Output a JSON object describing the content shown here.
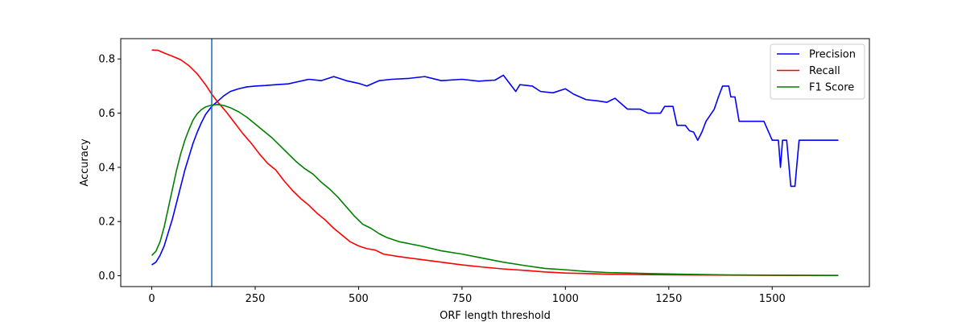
{
  "chart_data": {
    "type": "line",
    "title": "",
    "xlabel": "ORF length threshold",
    "ylabel": "Accuracy",
    "xlim": [
      -75,
      1735
    ],
    "ylim": [
      -0.04,
      0.875
    ],
    "xticks": [
      0,
      250,
      500,
      750,
      1000,
      1250,
      1500
    ],
    "yticks": [
      0.0,
      0.2,
      0.4,
      0.6,
      0.8
    ],
    "xtick_labels": [
      "0",
      "250",
      "500",
      "750",
      "1000",
      "1250",
      "1500"
    ],
    "ytick_labels": [
      "0.0",
      "0.2",
      "0.4",
      "0.6",
      "0.8"
    ],
    "grid": false,
    "legend_position": "top-right",
    "vline": {
      "x": 145,
      "color": "#1f77b4"
    },
    "series": [
      {
        "name": "Precision",
        "color": "#0000ff",
        "points": [
          [
            0,
            0.04
          ],
          [
            10,
            0.05
          ],
          [
            20,
            0.075
          ],
          [
            30,
            0.11
          ],
          [
            40,
            0.16
          ],
          [
            50,
            0.21
          ],
          [
            60,
            0.27
          ],
          [
            70,
            0.33
          ],
          [
            80,
            0.39
          ],
          [
            90,
            0.44
          ],
          [
            100,
            0.49
          ],
          [
            110,
            0.53
          ],
          [
            120,
            0.565
          ],
          [
            130,
            0.595
          ],
          [
            145,
            0.625
          ],
          [
            160,
            0.645
          ],
          [
            175,
            0.665
          ],
          [
            190,
            0.68
          ],
          [
            210,
            0.69
          ],
          [
            230,
            0.697
          ],
          [
            250,
            0.7
          ],
          [
            275,
            0.702
          ],
          [
            300,
            0.705
          ],
          [
            330,
            0.708
          ],
          [
            350,
            0.715
          ],
          [
            380,
            0.725
          ],
          [
            410,
            0.72
          ],
          [
            440,
            0.735
          ],
          [
            470,
            0.72
          ],
          [
            500,
            0.71
          ],
          [
            520,
            0.7
          ],
          [
            550,
            0.72
          ],
          [
            580,
            0.725
          ],
          [
            620,
            0.728
          ],
          [
            660,
            0.735
          ],
          [
            700,
            0.72
          ],
          [
            750,
            0.725
          ],
          [
            790,
            0.718
          ],
          [
            830,
            0.722
          ],
          [
            850,
            0.74
          ],
          [
            860,
            0.72
          ],
          [
            880,
            0.68
          ],
          [
            890,
            0.705
          ],
          [
            920,
            0.7
          ],
          [
            940,
            0.68
          ],
          [
            970,
            0.675
          ],
          [
            1000,
            0.69
          ],
          [
            1020,
            0.67
          ],
          [
            1050,
            0.65
          ],
          [
            1080,
            0.645
          ],
          [
            1100,
            0.64
          ],
          [
            1120,
            0.655
          ],
          [
            1150,
            0.615
          ],
          [
            1180,
            0.615
          ],
          [
            1200,
            0.6
          ],
          [
            1230,
            0.6
          ],
          [
            1240,
            0.625
          ],
          [
            1260,
            0.625
          ],
          [
            1270,
            0.555
          ],
          [
            1290,
            0.555
          ],
          [
            1300,
            0.535
          ],
          [
            1310,
            0.53
          ],
          [
            1320,
            0.5
          ],
          [
            1330,
            0.53
          ],
          [
            1340,
            0.57
          ],
          [
            1360,
            0.615
          ],
          [
            1370,
            0.66
          ],
          [
            1380,
            0.7
          ],
          [
            1395,
            0.7
          ],
          [
            1400,
            0.66
          ],
          [
            1410,
            0.66
          ],
          [
            1420,
            0.57
          ],
          [
            1450,
            0.57
          ],
          [
            1480,
            0.57
          ],
          [
            1500,
            0.5
          ],
          [
            1515,
            0.5
          ],
          [
            1520,
            0.4
          ],
          [
            1525,
            0.5
          ],
          [
            1535,
            0.5
          ],
          [
            1545,
            0.33
          ],
          [
            1555,
            0.33
          ],
          [
            1565,
            0.5
          ],
          [
            1600,
            0.5
          ],
          [
            1660,
            0.5
          ]
        ]
      },
      {
        "name": "Recall",
        "color": "#ff0000",
        "points": [
          [
            0,
            0.833
          ],
          [
            15,
            0.832
          ],
          [
            30,
            0.822
          ],
          [
            50,
            0.81
          ],
          [
            70,
            0.797
          ],
          [
            90,
            0.775
          ],
          [
            110,
            0.745
          ],
          [
            130,
            0.705
          ],
          [
            145,
            0.67
          ],
          [
            160,
            0.64
          ],
          [
            180,
            0.605
          ],
          [
            200,
            0.565
          ],
          [
            220,
            0.525
          ],
          [
            240,
            0.49
          ],
          [
            260,
            0.45
          ],
          [
            280,
            0.415
          ],
          [
            300,
            0.39
          ],
          [
            320,
            0.35
          ],
          [
            340,
            0.315
          ],
          [
            360,
            0.285
          ],
          [
            380,
            0.26
          ],
          [
            400,
            0.23
          ],
          [
            420,
            0.205
          ],
          [
            440,
            0.175
          ],
          [
            460,
            0.15
          ],
          [
            480,
            0.125
          ],
          [
            500,
            0.11
          ],
          [
            520,
            0.1
          ],
          [
            540,
            0.095
          ],
          [
            560,
            0.08
          ],
          [
            600,
            0.07
          ],
          [
            650,
            0.06
          ],
          [
            700,
            0.05
          ],
          [
            750,
            0.04
          ],
          [
            800,
            0.032
          ],
          [
            850,
            0.025
          ],
          [
            900,
            0.02
          ],
          [
            950,
            0.014
          ],
          [
            1000,
            0.01
          ],
          [
            1050,
            0.008
          ],
          [
            1100,
            0.006
          ],
          [
            1200,
            0.004
          ],
          [
            1300,
            0.003
          ],
          [
            1400,
            0.002
          ],
          [
            1500,
            0.0015
          ],
          [
            1660,
            0.001
          ]
        ]
      },
      {
        "name": "F1 Score",
        "color": "#008000",
        "points": [
          [
            0,
            0.075
          ],
          [
            10,
            0.09
          ],
          [
            20,
            0.125
          ],
          [
            30,
            0.18
          ],
          [
            40,
            0.25
          ],
          [
            50,
            0.32
          ],
          [
            60,
            0.39
          ],
          [
            70,
            0.45
          ],
          [
            80,
            0.5
          ],
          [
            90,
            0.54
          ],
          [
            100,
            0.575
          ],
          [
            110,
            0.598
          ],
          [
            120,
            0.613
          ],
          [
            130,
            0.623
          ],
          [
            145,
            0.63
          ],
          [
            160,
            0.632
          ],
          [
            175,
            0.628
          ],
          [
            190,
            0.62
          ],
          [
            210,
            0.605
          ],
          [
            230,
            0.585
          ],
          [
            250,
            0.56
          ],
          [
            270,
            0.535
          ],
          [
            290,
            0.51
          ],
          [
            310,
            0.48
          ],
          [
            330,
            0.45
          ],
          [
            350,
            0.42
          ],
          [
            370,
            0.395
          ],
          [
            390,
            0.375
          ],
          [
            410,
            0.345
          ],
          [
            430,
            0.32
          ],
          [
            450,
            0.29
          ],
          [
            470,
            0.255
          ],
          [
            490,
            0.22
          ],
          [
            510,
            0.19
          ],
          [
            530,
            0.175
          ],
          [
            550,
            0.155
          ],
          [
            570,
            0.14
          ],
          [
            600,
            0.125
          ],
          [
            650,
            0.11
          ],
          [
            700,
            0.092
          ],
          [
            750,
            0.08
          ],
          [
            800,
            0.065
          ],
          [
            850,
            0.05
          ],
          [
            900,
            0.038
          ],
          [
            950,
            0.027
          ],
          [
            1000,
            0.022
          ],
          [
            1050,
            0.016
          ],
          [
            1100,
            0.012
          ],
          [
            1200,
            0.008
          ],
          [
            1300,
            0.005
          ],
          [
            1400,
            0.003
          ],
          [
            1500,
            0.002
          ],
          [
            1660,
            0.001
          ]
        ]
      }
    ]
  }
}
